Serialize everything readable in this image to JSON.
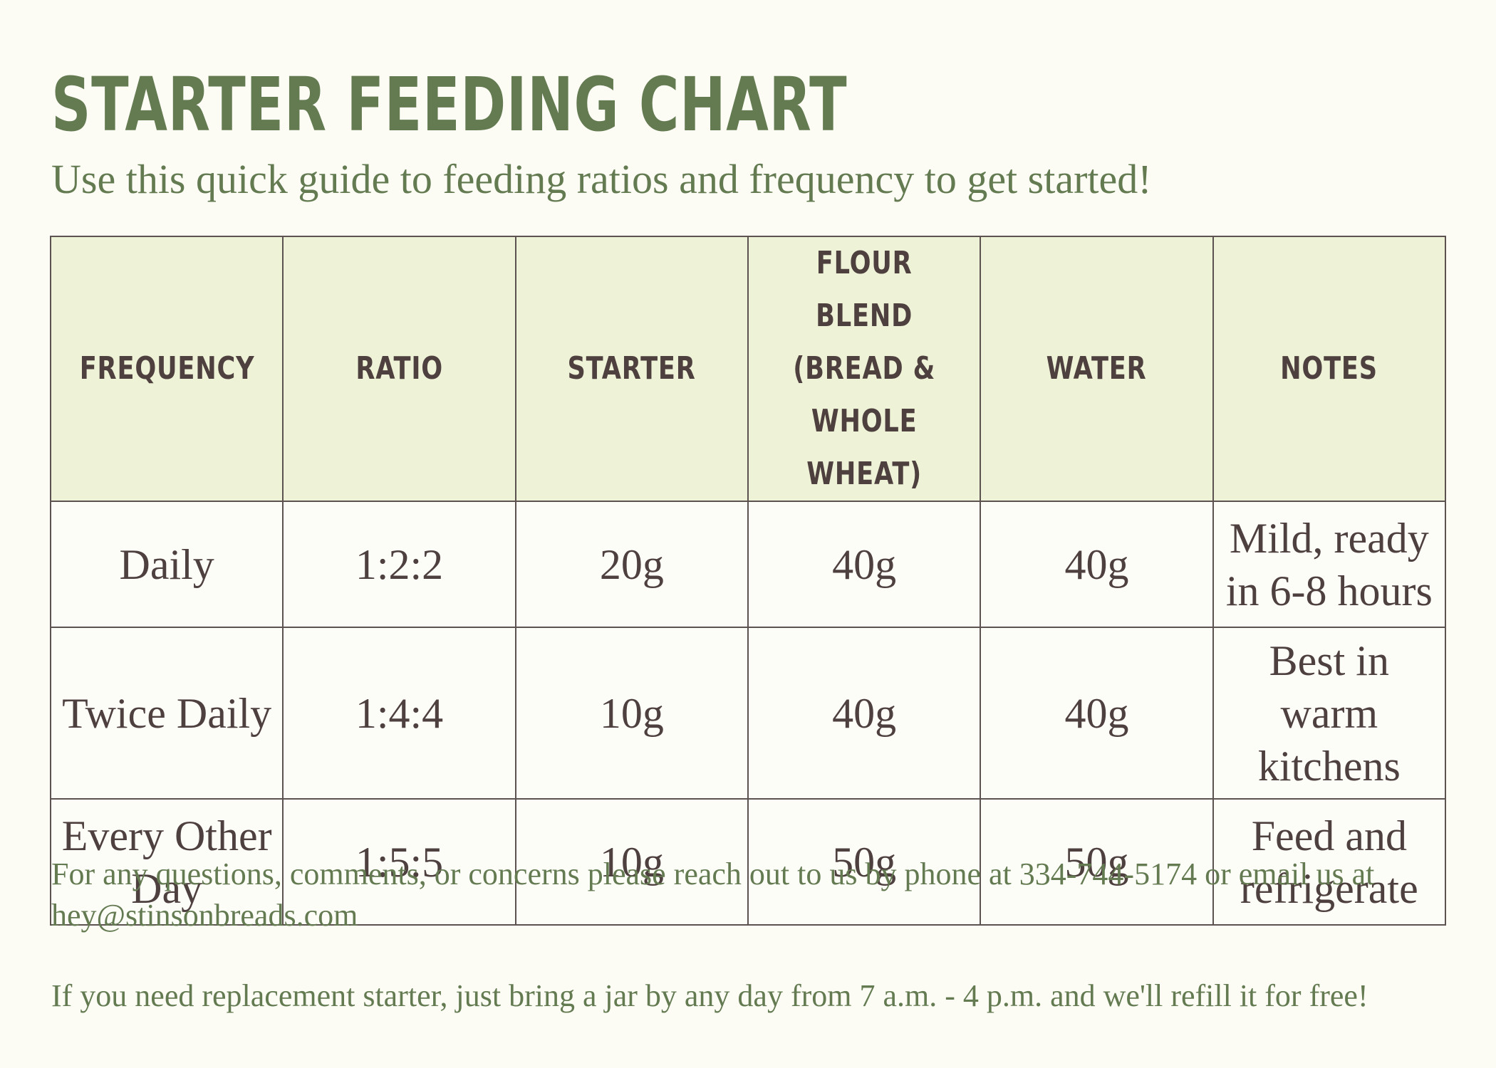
{
  "title": "STARTER FEEDING CHART",
  "subtitle": "Use this quick guide to feeding ratios and frequency to get started!",
  "table": {
    "headers": {
      "frequency": "FREQUENCY",
      "ratio": "RATIO",
      "starter": "STARTER",
      "flour_line1": "FLOUR BLEND",
      "flour_line2": "(BREAD &",
      "flour_line3": "WHOLE WHEAT)",
      "water": "WATER",
      "notes": "NOTES"
    },
    "rows": [
      {
        "frequency": "Daily",
        "ratio": "1:2:2",
        "starter": "20g",
        "flour": "40g",
        "water": "40g",
        "notes_line1": "Mild, ready",
        "notes_line2": "in 6-8 hours"
      },
      {
        "frequency": "Twice Daily",
        "ratio": "1:4:4",
        "starter": "10g",
        "flour": "40g",
        "water": "40g",
        "notes_line1": "Best in",
        "notes_line2": "warm",
        "notes_line3": "kitchens"
      },
      {
        "frequency_line1": "Every Other",
        "frequency_line2": "Day",
        "ratio": "1:5:5",
        "starter": "10g",
        "flour": "50g",
        "water": "50g",
        "notes_line1": "Feed and",
        "notes_line2": "refrigerate"
      }
    ]
  },
  "footer": {
    "contact_line1": "For any questions, comments, or concerns please reach out to us by phone at 334-744-5174 or email us at",
    "contact_line2": "hey@stinsonbreads.com",
    "refill": "If you need replacement starter, just bring a jar by any day from 7 a.m. - 4 p.m. and we'll refill it for free!"
  },
  "colors": {
    "accent_green": "#647b52",
    "header_fill": "#eef2d7",
    "text_dark": "#4e403e",
    "background": "#fcfcf5"
  }
}
